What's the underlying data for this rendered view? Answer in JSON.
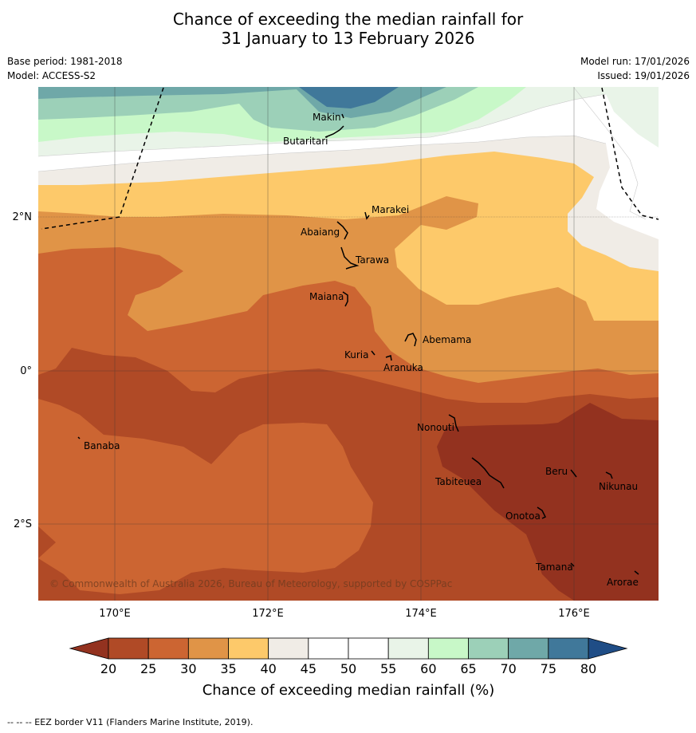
{
  "title": {
    "line1": "Chance of exceeding the median rainfall for",
    "line2": "31 January to 13 February 2026"
  },
  "meta": {
    "base_period": "Base period: 1981-2018",
    "model": "Model: ACCESS-S2",
    "model_run": "Model run: 17/01/2026",
    "issued": "Issued: 19/01/2026"
  },
  "axes": {
    "lon_ticks": [
      "170°E",
      "172°E",
      "174°E",
      "176°E"
    ],
    "lat_ticks": [
      "2°N",
      "0°",
      "2°S"
    ]
  },
  "places": {
    "makin": "Makin",
    "butaritari": "Butaritari",
    "marakei": "Marakei",
    "abaiang": "Abaiang",
    "tarawa": "Tarawa",
    "maiana": "Maiana",
    "abemama": "Abemama",
    "kuria": "Kuria",
    "aranuka": "Aranuka",
    "banaba": "Banaba",
    "nonouti": "Nonouti",
    "tabiteuea": "Tabiteuea",
    "beru": "Beru",
    "nikunau": "Nikunau",
    "onotoa": "Onotoa",
    "tamana": "Tamana",
    "arorae": "Arorae"
  },
  "copyright": "© Commonwealth of Australia 2026, Bureau of Meteorology, supported by COSPPac",
  "colorbar": {
    "ticks": [
      "20",
      "25",
      "30",
      "35",
      "40",
      "45",
      "50",
      "55",
      "60",
      "65",
      "70",
      "75",
      "80"
    ],
    "label": "Chance of exceeding median rainfall (%)",
    "colors": [
      "#b04a26",
      "#cc6532",
      "#e09447",
      "#fdc96a",
      "#f0ece6",
      "#ffffff",
      "#ffffff",
      "#e9f4e8",
      "#c8f8c8",
      "#9cd0b8",
      "#6fa8a8",
      "#40789a"
    ],
    "under_color": "#93321f",
    "over_color": "#1f4d86"
  },
  "footer": "--  --  -- EEZ border V11 (Flanders Marine Institute, 2019)."
}
